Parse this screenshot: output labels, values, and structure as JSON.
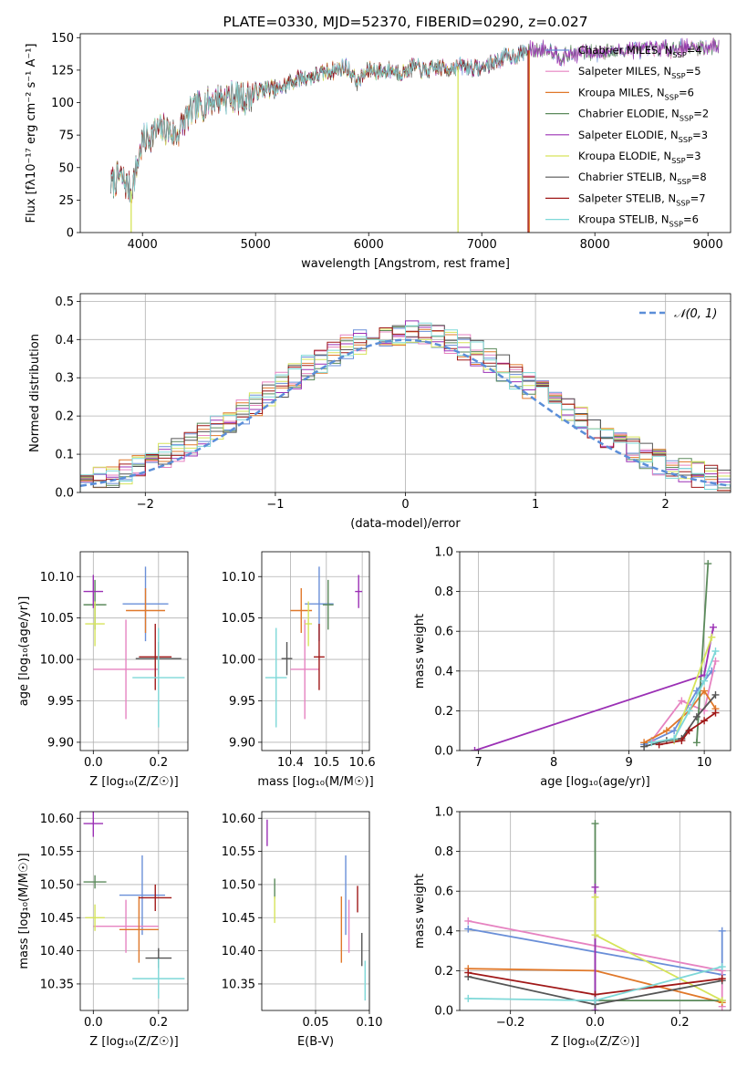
{
  "colors": {
    "Chabrier MILES": "#6a8fd8",
    "Salpeter MILES": "#e683c1",
    "Kroupa MILES": "#e0782a",
    "Chabrier ELODIE": "#5b8a5b",
    "Salpeter ELODIE": "#9b30b5",
    "Kroupa ELODIE": "#d6e45a",
    "Chabrier STELIB": "#555555",
    "Salpeter STELIB": "#a01818",
    "Kroupa STELIB": "#7ed8d8",
    "normal_curve": "#5b8ed8"
  },
  "chart_data": [
    {
      "id": "spectrum",
      "type": "line",
      "title": "PLATE=0330, MJD=52370, FIBERID=0290, z=0.027",
      "xlabel": "wavelength [Angstrom, rest frame]",
      "ylabel": "Flux [fλ10⁻¹⁷ erg cm⁻² s⁻¹ A⁻¹]",
      "xlim": [
        3450,
        9200
      ],
      "ylim": [
        0,
        153
      ],
      "xticks": [
        4000,
        5000,
        6000,
        7000,
        8000,
        9000
      ],
      "yticks": [
        0,
        25,
        50,
        75,
        100,
        125,
        150
      ],
      "grid": false,
      "legend_position": "top-right",
      "continuum": {
        "x": [
          3720,
          3800,
          3900,
          4000,
          4100,
          4200,
          4300,
          4400,
          4500,
          4600,
          4700,
          4800,
          4900,
          5000,
          5100,
          5200,
          5300,
          5400,
          5500,
          5600,
          5700,
          5800,
          5900,
          6000,
          6100,
          6200,
          6300,
          6400,
          6500,
          6600,
          6700,
          6800,
          6900,
          7000,
          7100,
          7200,
          7300,
          7400,
          7500,
          7600,
          7700,
          7800,
          7900,
          8000,
          8100,
          8200,
          8300,
          8400,
          8500,
          8600,
          8700,
          8800,
          8900,
          9000,
          9100
        ],
        "y": [
          37,
          44,
          32,
          70,
          77,
          80,
          75,
          90,
          97,
          101,
          104,
          105,
          103,
          108,
          111,
          110,
          115,
          119,
          120,
          123,
          125,
          128,
          116,
          125,
          124,
          125,
          123,
          128,
          124,
          127,
          126,
          128,
          127,
          126,
          131,
          135,
          136,
          140,
          141,
          142,
          135,
          137,
          139,
          138,
          140,
          139,
          141,
          140,
          141,
          142,
          141,
          143,
          142,
          143,
          144
        ]
      },
      "series": [
        {
          "name": "Chabrier MILES, N_SSP=4",
          "model": "Chabrier MILES",
          "nssp": "4"
        },
        {
          "name": "Salpeter MILES, N_SSP=5",
          "model": "Salpeter MILES",
          "nssp": "5"
        },
        {
          "name": "Kroupa MILES, N_SSP=6",
          "model": "Kroupa MILES",
          "nssp": "6",
          "x_max": 7420
        },
        {
          "name": "Chabrier ELODIE, N_SSP=2",
          "model": "Chabrier ELODIE",
          "nssp": "2"
        },
        {
          "name": "Salpeter ELODIE, N_SSP=3",
          "model": "Salpeter ELODIE",
          "nssp": "3"
        },
        {
          "name": "Kroupa ELODIE, N_SSP=3",
          "model": "Kroupa ELODIE",
          "nssp": "3",
          "x_max": 6790
        },
        {
          "name": "Chabrier STELIB, N_SSP=8",
          "model": "Chabrier STELIB",
          "nssp": "8",
          "x_max": 7400
        },
        {
          "name": "Salpeter STELIB, N_SSP=7",
          "model": "Salpeter STELIB",
          "nssp": "7",
          "x_max": 7400
        },
        {
          "name": "Kroupa STELIB, N_SSP=6",
          "model": "Kroupa STELIB",
          "nssp": "6",
          "x_max": 7400
        }
      ],
      "drops_to_zero": [
        {
          "model": "Kroupa ELODIE",
          "x": 3900
        },
        {
          "model": "Kroupa ELODIE",
          "x": 6790
        },
        {
          "model": "Kroupa MILES",
          "x": 7420
        },
        {
          "model": "Salpeter STELIB",
          "x": 7410
        }
      ]
    },
    {
      "id": "residuals",
      "type": "histogram",
      "xlabel": "(data-model)/error",
      "ylabel": "Normed distribution",
      "xlim": [
        -2.5,
        2.5
      ],
      "ylim": [
        0,
        0.52
      ],
      "xticks": [
        -2,
        -1,
        0,
        1,
        2
      ],
      "yticks": [
        0.0,
        0.1,
        0.2,
        0.3,
        0.4,
        0.5
      ],
      "grid": true,
      "legend_position": "top-right",
      "reference_curve": {
        "label": "𝒩(0, 1)",
        "mean": 0,
        "sigma": 1
      },
      "bin_width": 0.1,
      "hist_models": [
        "Chabrier MILES",
        "Salpeter MILES",
        "Kroupa MILES",
        "Chabrier ELODIE",
        "Salpeter ELODIE",
        "Kroupa ELODIE",
        "Chabrier STELIB",
        "Salpeter STELIB",
        "Kroupa STELIB"
      ]
    },
    {
      "id": "age-vs-Z",
      "type": "errorbar",
      "xlabel": "Z [log₁₀(Z/Z☉)]",
      "ylabel": "age  [log₁₀(age/yr)]",
      "xlim": [
        -0.04,
        0.29
      ],
      "ylim": [
        9.89,
        10.13
      ],
      "xticks": [
        0.0,
        0.2
      ],
      "yticks": [
        9.9,
        9.95,
        10.0,
        10.05,
        10.1
      ],
      "grid": true,
      "points": [
        {
          "model": "Chabrier MILES",
          "x": 0.16,
          "xerr": 0.07,
          "y": 10.067,
          "yerr": 0.045
        },
        {
          "model": "Salpeter MILES",
          "x": 0.1,
          "xerr": 0.1,
          "y": 9.988,
          "yerr": 0.06
        },
        {
          "model": "Kroupa MILES",
          "x": 0.16,
          "xerr": 0.06,
          "y": 10.059,
          "yerr": 0.027
        },
        {
          "model": "Chabrier ELODIE",
          "x": 0.005,
          "xerr": 0.035,
          "y": 10.066,
          "yerr": 0.03
        },
        {
          "model": "Salpeter ELODIE",
          "x": 0.0,
          "xerr": 0.03,
          "y": 10.082,
          "yerr": 0.02
        },
        {
          "model": "Kroupa ELODIE",
          "x": 0.005,
          "xerr": 0.03,
          "y": 10.043,
          "yerr": 0.027
        },
        {
          "model": "Chabrier STELIB",
          "x": 0.2,
          "xerr": 0.07,
          "y": 10.001,
          "yerr": 0.02
        },
        {
          "model": "Salpeter STELIB",
          "x": 0.19,
          "xerr": 0.05,
          "y": 10.003,
          "yerr": 0.04
        },
        {
          "model": "Kroupa STELIB",
          "x": 0.2,
          "xerr": 0.08,
          "y": 9.978,
          "yerr": 0.06
        }
      ]
    },
    {
      "id": "age-vs-mass",
      "type": "errorbar",
      "xlabel": "mass [log₁₀(M/M☉)]",
      "ylabel": "",
      "xlim": [
        10.32,
        10.62
      ],
      "ylim": [
        9.89,
        10.13
      ],
      "xticks": [
        10.4,
        10.5,
        10.6
      ],
      "yticks": [
        9.9,
        9.95,
        10.0,
        10.05,
        10.1
      ],
      "grid": true,
      "points": [
        {
          "model": "Chabrier MILES",
          "x": 10.48,
          "xerr": 0.04,
          "y": 10.067,
          "yerr": 0.045
        },
        {
          "model": "Salpeter MILES",
          "x": 10.44,
          "xerr": 0.04,
          "y": 9.988,
          "yerr": 0.06
        },
        {
          "model": "Kroupa MILES",
          "x": 10.43,
          "xerr": 0.03,
          "y": 10.059,
          "yerr": 0.027
        },
        {
          "model": "Chabrier ELODIE",
          "x": 10.505,
          "xerr": 0.015,
          "y": 10.066,
          "yerr": 0.03
        },
        {
          "model": "Salpeter ELODIE",
          "x": 10.59,
          "xerr": 0.01,
          "y": 10.082,
          "yerr": 0.02
        },
        {
          "model": "Kroupa ELODIE",
          "x": 10.45,
          "xerr": 0.01,
          "y": 10.043,
          "yerr": 0.027
        },
        {
          "model": "Chabrier STELIB",
          "x": 10.39,
          "xerr": 0.015,
          "y": 10.001,
          "yerr": 0.02
        },
        {
          "model": "Salpeter STELIB",
          "x": 10.48,
          "xerr": 0.015,
          "y": 10.003,
          "yerr": 0.04
        },
        {
          "model": "Kroupa STELIB",
          "x": 10.36,
          "xerr": 0.03,
          "y": 9.978,
          "yerr": 0.06
        }
      ]
    },
    {
      "id": "mass-weight-vs-age",
      "type": "line",
      "xlabel": "age  [log₁₀(age/yr)]",
      "ylabel": "mass weight",
      "xlim": [
        6.75,
        10.35
      ],
      "ylim": [
        0,
        1.0
      ],
      "xticks": [
        7,
        8,
        9,
        10
      ],
      "yticks": [
        0.0,
        0.2,
        0.4,
        0.6,
        0.8,
        1.0
      ],
      "grid": true,
      "series": [
        {
          "model": "Chabrier MILES",
          "x": [
            9.2,
            9.6,
            9.9,
            10.1
          ],
          "y": [
            0.03,
            0.1,
            0.3,
            0.4
          ]
        },
        {
          "model": "Salpeter MILES",
          "x": [
            9.3,
            9.7,
            10.0,
            10.15
          ],
          "y": [
            0.05,
            0.25,
            0.2,
            0.45
          ]
        },
        {
          "model": "Kroupa MILES",
          "x": [
            9.2,
            9.5,
            9.8,
            10.0,
            10.15
          ],
          "y": [
            0.04,
            0.1,
            0.2,
            0.3,
            0.21
          ]
        },
        {
          "model": "Chabrier ELODIE",
          "x": [
            9.9,
            10.05
          ],
          "y": [
            0.04,
            0.94
          ]
        },
        {
          "model": "Salpeter ELODIE",
          "x": [
            6.95,
            10.0,
            10.12
          ],
          "y": [
            0.0,
            0.38,
            0.62
          ]
        },
        {
          "model": "Kroupa ELODIE",
          "x": [
            9.6,
            10.1
          ],
          "y": [
            0.05,
            0.57
          ]
        },
        {
          "model": "Chabrier STELIB",
          "x": [
            9.2,
            9.5,
            9.7,
            9.9,
            10.15
          ],
          "y": [
            0.02,
            0.05,
            0.06,
            0.17,
            0.28
          ]
        },
        {
          "model": "Salpeter STELIB",
          "x": [
            9.4,
            9.7,
            9.8,
            10.0,
            10.15
          ],
          "y": [
            0.03,
            0.05,
            0.1,
            0.15,
            0.19
          ]
        },
        {
          "model": "Kroupa STELIB",
          "x": [
            9.3,
            9.6,
            9.8,
            10.0,
            10.15
          ],
          "y": [
            0.04,
            0.06,
            0.2,
            0.35,
            0.5
          ]
        }
      ]
    },
    {
      "id": "mass-vs-Z",
      "type": "errorbar",
      "xlabel": "Z [log₁₀(Z/Z☉)]",
      "ylabel": "mass [log₁₀(M/M☉)]",
      "xlim": [
        -0.04,
        0.29
      ],
      "ylim": [
        10.31,
        10.61
      ],
      "xticks": [
        0.0,
        0.2
      ],
      "yticks": [
        10.35,
        10.4,
        10.45,
        10.5,
        10.55,
        10.6
      ],
      "grid": true,
      "points": [
        {
          "model": "Chabrier MILES",
          "x": 0.15,
          "xerr": 0.07,
          "y": 10.484,
          "yerr": 0.06
        },
        {
          "model": "Salpeter MILES",
          "x": 0.1,
          "xerr": 0.1,
          "y": 10.437,
          "yerr": 0.04
        },
        {
          "model": "Kroupa MILES",
          "x": 0.14,
          "xerr": 0.06,
          "y": 10.432,
          "yerr": 0.05
        },
        {
          "model": "Chabrier ELODIE",
          "x": 0.005,
          "xerr": 0.035,
          "y": 10.504,
          "yerr": 0.01
        },
        {
          "model": "Salpeter ELODIE",
          "x": 0.0,
          "xerr": 0.03,
          "y": 10.592,
          "yerr": 0.02
        },
        {
          "model": "Kroupa ELODIE",
          "x": 0.005,
          "xerr": 0.03,
          "y": 10.45,
          "yerr": 0.02
        },
        {
          "model": "Chabrier STELIB",
          "x": 0.2,
          "xerr": 0.04,
          "y": 10.389,
          "yerr": 0.015
        },
        {
          "model": "Salpeter STELIB",
          "x": 0.19,
          "xerr": 0.05,
          "y": 10.48,
          "yerr": 0.02
        },
        {
          "model": "Kroupa STELIB",
          "x": 0.2,
          "xerr": 0.08,
          "y": 10.358,
          "yerr": 0.03
        }
      ]
    },
    {
      "id": "mass-vs-ebv",
      "type": "errorbar",
      "xlabel": "E(B-V)",
      "ylabel": "",
      "xlim": [
        0.0,
        0.1
      ],
      "ylim": [
        10.31,
        10.61
      ],
      "xticks": [
        0.05,
        0.1
      ],
      "yticks": [
        10.35,
        10.4,
        10.45,
        10.5,
        10.55,
        10.6
      ],
      "grid": true,
      "points": [
        {
          "model": "Chabrier MILES",
          "x": 0.078,
          "y": 10.484,
          "yerr": 0.06
        },
        {
          "model": "Salpeter MILES",
          "x": 0.081,
          "y": 10.437,
          "yerr": 0.04
        },
        {
          "model": "Kroupa MILES",
          "x": 0.074,
          "y": 10.432,
          "yerr": 0.05
        },
        {
          "model": "Chabrier ELODIE",
          "x": 0.012,
          "y": 10.494,
          "yerr": 0.015
        },
        {
          "model": "Salpeter ELODIE",
          "x": 0.005,
          "y": 10.578,
          "yerr": 0.02
        },
        {
          "model": "Kroupa ELODIE",
          "x": 0.012,
          "y": 10.462,
          "yerr": 0.02
        },
        {
          "model": "Chabrier STELIB",
          "x": 0.093,
          "y": 10.402,
          "yerr": 0.025
        },
        {
          "model": "Salpeter STELIB",
          "x": 0.089,
          "y": 10.478,
          "yerr": 0.02
        },
        {
          "model": "Kroupa STELIB",
          "x": 0.096,
          "y": 10.355,
          "yerr": 0.03
        }
      ]
    },
    {
      "id": "mass-weight-vs-Z",
      "type": "line",
      "xlabel": "Z [log₁₀(Z/Z☉)]",
      "ylabel": "mass weight",
      "xlim": [
        -0.32,
        0.32
      ],
      "ylim": [
        0,
        1.0
      ],
      "xticks": [
        -0.2,
        0.0,
        0.2
      ],
      "yticks": [
        0.0,
        0.2,
        0.4,
        0.6,
        0.8,
        1.0
      ],
      "grid": true,
      "series": [
        {
          "model": "Chabrier MILES",
          "x": [
            -0.3,
            0.3,
            0.3
          ],
          "y": [
            0.41,
            0.18,
            0.4
          ]
        },
        {
          "model": "Salpeter MILES",
          "x": [
            -0.3,
            0.3,
            0.3
          ],
          "y": [
            0.45,
            0.2,
            0.02
          ]
        },
        {
          "model": "Kroupa MILES",
          "x": [
            -0.3,
            0.0,
            0.3
          ],
          "y": [
            0.21,
            0.2,
            0.04
          ]
        },
        {
          "model": "Chabrier ELODIE",
          "x": [
            0.0,
            0.0,
            0.3
          ],
          "y": [
            0.94,
            0.05,
            0.05
          ]
        },
        {
          "model": "Salpeter ELODIE",
          "x": [
            0.0,
            0.0
          ],
          "y": [
            0.62,
            0.0
          ]
        },
        {
          "model": "Kroupa ELODIE",
          "x": [
            0.0,
            0.0,
            0.3
          ],
          "y": [
            0.57,
            0.38,
            0.05
          ]
        },
        {
          "model": "Chabrier STELIB",
          "x": [
            -0.3,
            0.0,
            0.3
          ],
          "y": [
            0.17,
            0.03,
            0.15
          ]
        },
        {
          "model": "Salpeter STELIB",
          "x": [
            -0.3,
            0.0,
            0.3
          ],
          "y": [
            0.19,
            0.08,
            0.16
          ]
        },
        {
          "model": "Kroupa STELIB",
          "x": [
            -0.3,
            0.0,
            0.3
          ],
          "y": [
            0.06,
            0.05,
            0.22
          ]
        }
      ]
    }
  ]
}
